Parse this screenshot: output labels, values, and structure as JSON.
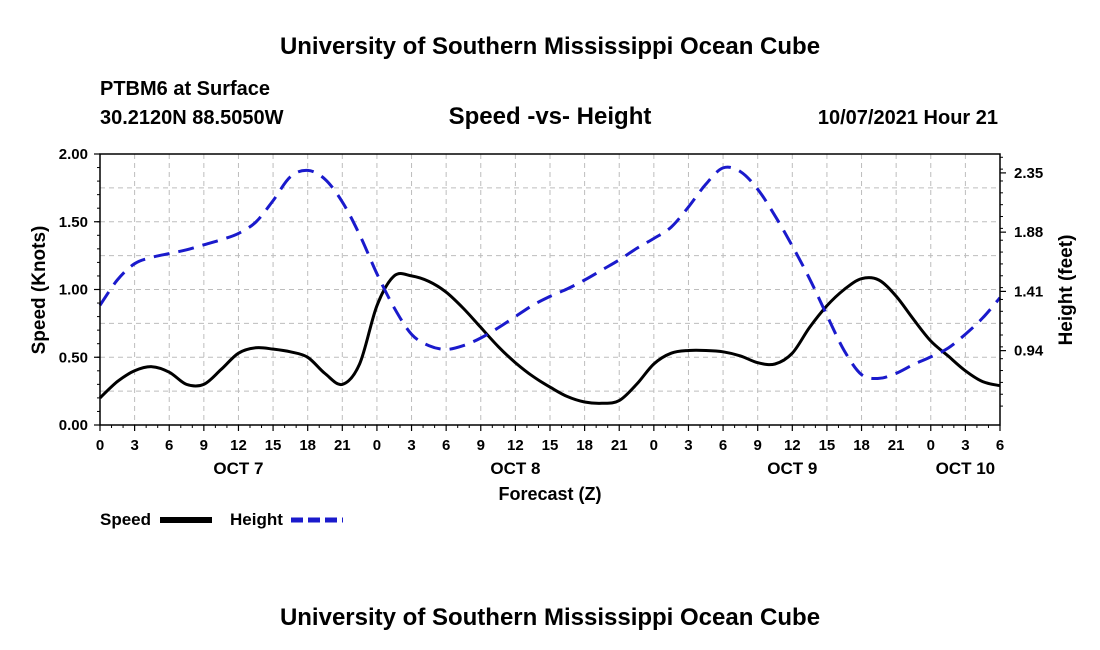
{
  "header": {
    "title_top": "University of Southern Mississippi Ocean Cube",
    "station": "PTBM6 at Surface",
    "coords": "30.2120N  88.5050W",
    "chart_title": "Speed -vs- Height",
    "datetime": "10/07/2021 Hour 21",
    "title_bottom": "University of Southern Mississippi Ocean Cube"
  },
  "legend": {
    "speed_label": "Speed",
    "height_label": "Height"
  },
  "colors": {
    "speed": "#000000",
    "height": "#1a1acc",
    "grid": "#bdbdbd"
  },
  "chart_data": {
    "type": "line",
    "title": "Speed -vs- Height",
    "xlabel": "Forecast (Z)",
    "ylabel": "Speed (Knots)",
    "y2label": "Height (feet)",
    "xlim": [
      0,
      78
    ],
    "ylim": [
      0,
      2.0
    ],
    "y2lim": [
      0.35,
      2.5
    ],
    "grid": true,
    "legend_position": "bottom-left",
    "x_ticks": [
      0,
      3,
      6,
      9,
      12,
      15,
      18,
      21,
      24,
      27,
      30,
      33,
      36,
      39,
      42,
      45,
      48,
      51,
      54,
      57,
      60,
      63,
      66,
      69,
      72,
      75,
      78
    ],
    "x_tick_labels": [
      "0",
      "3",
      "6",
      "9",
      "12",
      "15",
      "18",
      "21",
      "0",
      "3",
      "6",
      "9",
      "12",
      "15",
      "18",
      "21",
      "0",
      "3",
      "6",
      "9",
      "12",
      "15",
      "18",
      "21",
      "0",
      "3",
      "6"
    ],
    "day_labels": [
      {
        "x": 12,
        "label": "OCT 7"
      },
      {
        "x": 36,
        "label": "OCT 8"
      },
      {
        "x": 60,
        "label": "OCT 9"
      },
      {
        "x": 75,
        "label": "OCT 10"
      }
    ],
    "y_ticks": [
      0,
      0.5,
      1.0,
      1.5,
      2.0
    ],
    "y_tick_labels": [
      "0.00",
      "0.50",
      "1.00",
      "1.50",
      "2.00"
    ],
    "y2_ticks": [
      0.94,
      1.41,
      1.88,
      2.35
    ],
    "y2_tick_labels": [
      "0.94",
      "1.41",
      "1.88",
      "2.35"
    ],
    "series": [
      {
        "name": "Speed",
        "axis": "left",
        "style": "solid",
        "x": [
          0,
          1.5,
          3,
          4.5,
          6,
          7.5,
          9,
          10.5,
          12,
          13.5,
          15,
          16.5,
          18,
          19.5,
          21,
          22.5,
          24,
          25.5,
          27,
          28.5,
          30,
          31.5,
          33,
          34.5,
          36,
          37.5,
          39,
          40.5,
          42,
          43.5,
          45,
          46.5,
          48,
          49.5,
          51,
          52.5,
          54,
          55.5,
          57,
          58.5,
          60,
          61.5,
          63,
          64.5,
          66,
          67.5,
          69,
          70.5,
          72,
          73.5,
          75,
          76.5,
          78
        ],
        "values": [
          0.2,
          0.32,
          0.4,
          0.43,
          0.39,
          0.3,
          0.3,
          0.41,
          0.53,
          0.57,
          0.56,
          0.54,
          0.5,
          0.38,
          0.3,
          0.45,
          0.88,
          1.1,
          1.1,
          1.06,
          0.98,
          0.86,
          0.72,
          0.58,
          0.46,
          0.36,
          0.28,
          0.21,
          0.17,
          0.16,
          0.18,
          0.3,
          0.45,
          0.53,
          0.55,
          0.55,
          0.54,
          0.51,
          0.46,
          0.45,
          0.53,
          0.72,
          0.88,
          1.0,
          1.08,
          1.07,
          0.95,
          0.78,
          0.62,
          0.51,
          0.4,
          0.32,
          0.29
        ]
      },
      {
        "name": "Height",
        "axis": "right",
        "style": "dashed",
        "x": [
          0,
          1.5,
          3,
          4.5,
          6,
          7.5,
          9,
          10.5,
          12,
          13.5,
          15,
          16.5,
          18,
          19.5,
          21,
          22.5,
          24,
          25.5,
          27,
          28.5,
          30,
          31.5,
          33,
          34.5,
          36,
          37.5,
          39,
          40.5,
          42,
          43.5,
          45,
          46.5,
          48,
          49.5,
          51,
          52.5,
          54,
          55.5,
          57,
          58.5,
          60,
          61.5,
          63,
          64.5,
          66,
          67.5,
          69,
          70.5,
          72,
          73.5,
          75,
          76.5,
          78
        ],
        "values": [
          1.3,
          1.5,
          1.63,
          1.68,
          1.71,
          1.74,
          1.78,
          1.82,
          1.87,
          1.96,
          2.13,
          2.32,
          2.37,
          2.3,
          2.12,
          1.86,
          1.55,
          1.28,
          1.07,
          0.98,
          0.95,
          0.98,
          1.04,
          1.12,
          1.21,
          1.3,
          1.37,
          1.43,
          1.5,
          1.58,
          1.66,
          1.75,
          1.83,
          1.92,
          2.08,
          2.26,
          2.39,
          2.36,
          2.22,
          2.01,
          1.77,
          1.51,
          1.22,
          0.94,
          0.75,
          0.72,
          0.76,
          0.83,
          0.89,
          0.96,
          1.07,
          1.2,
          1.36
        ]
      }
    ]
  }
}
